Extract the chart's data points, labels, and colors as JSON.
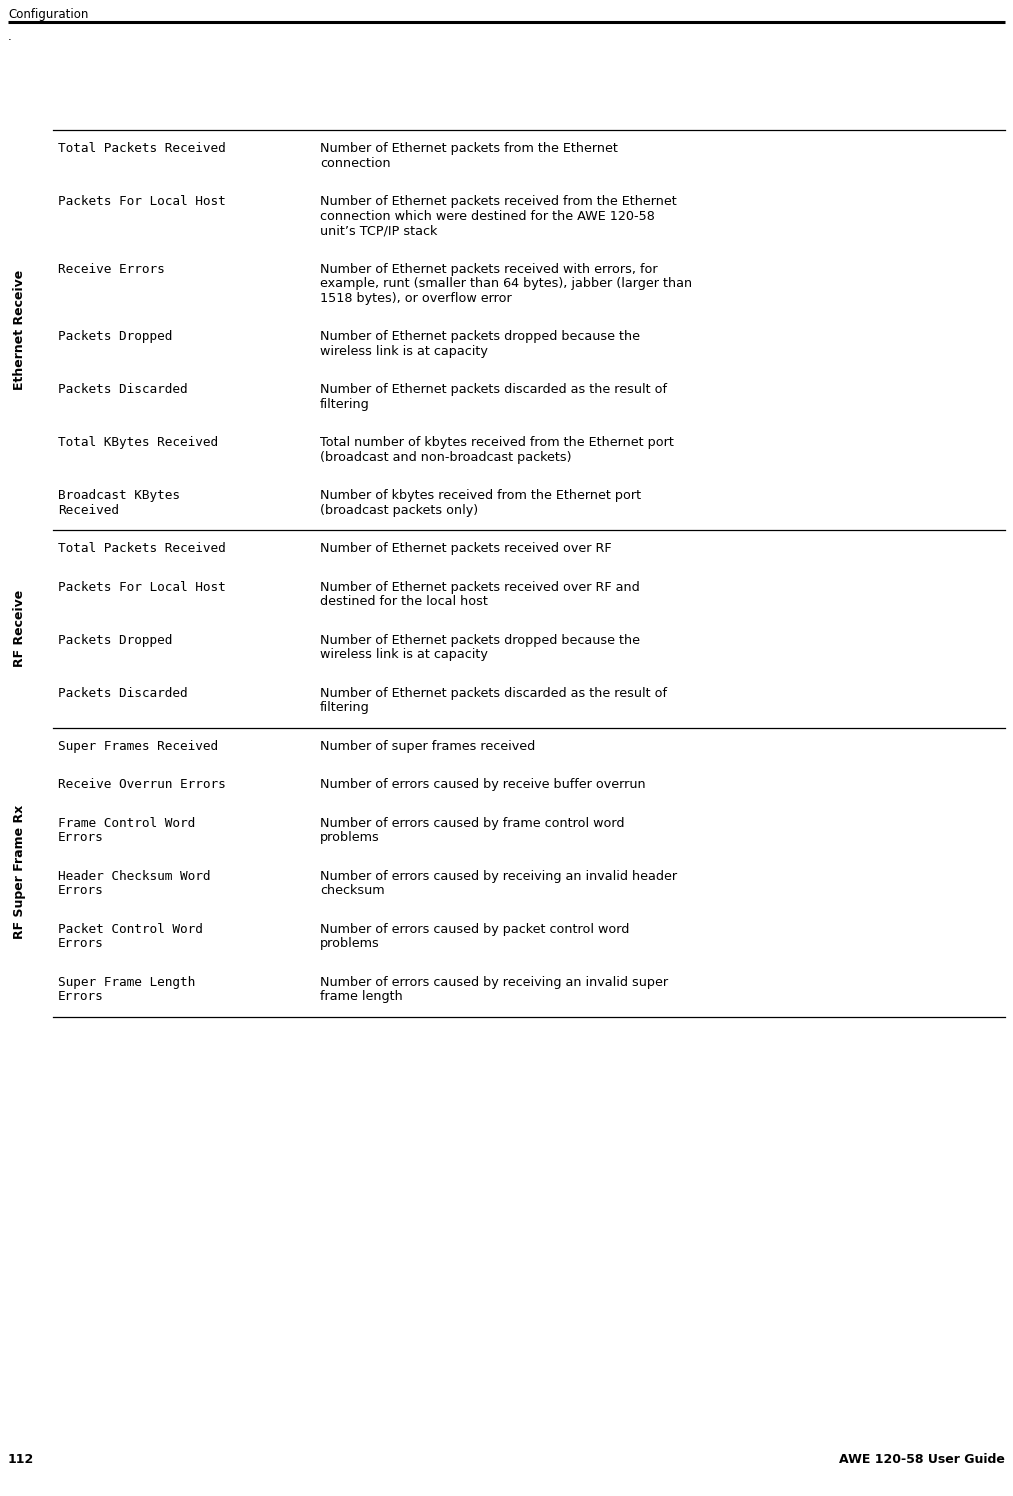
{
  "page_title": "Configuration",
  "page_number": "112",
  "page_footer_right": "AWE 120-58 User Guide",
  "dot_text": ".",
  "background_color": "#ffffff",
  "text_color": "#000000",
  "sections": [
    {
      "label": "Ethernet Receive",
      "rows": [
        {
          "term": "Total Packets Received",
          "description": "Number of Ethernet packets from the Ethernet\nconnection",
          "desc_lines": 2,
          "term_lines": 1
        },
        {
          "term": "Packets For Local Host",
          "description": "Number of Ethernet packets received from the Ethernet\nconnection which were destined for the AWE 120-58\nunit’s TCP/IP stack",
          "desc_lines": 3,
          "term_lines": 1
        },
        {
          "term": "Receive Errors",
          "description": "Number of Ethernet packets received with errors, for\nexample, runt (smaller than 64 bytes), jabber (larger than\n1518 bytes), or overflow error",
          "desc_lines": 3,
          "term_lines": 1
        },
        {
          "term": "Packets Dropped",
          "description": "Number of Ethernet packets dropped because the\nwireless link is at capacity",
          "desc_lines": 2,
          "term_lines": 1
        },
        {
          "term": "Packets Discarded",
          "description": "Number of Ethernet packets discarded as the result of\nfiltering",
          "desc_lines": 2,
          "term_lines": 1
        },
        {
          "term": "Total KBytes Received",
          "description": "Total number of kbytes received from the Ethernet port\n(broadcast and non-broadcast packets)",
          "desc_lines": 2,
          "term_lines": 1
        },
        {
          "term": "Broadcast KBytes\nReceived",
          "description": "Number of kbytes received from the Ethernet port\n(broadcast packets only)",
          "desc_lines": 2,
          "term_lines": 2
        }
      ]
    },
    {
      "label": "RF Receive",
      "rows": [
        {
          "term": "Total Packets Received",
          "description": "Number of Ethernet packets received over RF",
          "desc_lines": 1,
          "term_lines": 1
        },
        {
          "term": "Packets For Local Host",
          "description": "Number of Ethernet packets received over RF and\ndestined for the local host",
          "desc_lines": 2,
          "term_lines": 1
        },
        {
          "term": "Packets Dropped",
          "description": "Number of Ethernet packets dropped because the\nwireless link is at capacity",
          "desc_lines": 2,
          "term_lines": 1
        },
        {
          "term": "Packets Discarded",
          "description": "Number of Ethernet packets discarded as the result of\nfiltering",
          "desc_lines": 2,
          "term_lines": 1
        }
      ]
    },
    {
      "label": "RF Super Frame Rx",
      "rows": [
        {
          "term": "Super Frames Received",
          "description": "Number of super frames received",
          "desc_lines": 1,
          "term_lines": 1
        },
        {
          "term": "Receive Overrun Errors",
          "description": "Number of errors caused by receive buffer overrun",
          "desc_lines": 1,
          "term_lines": 1
        },
        {
          "term": "Frame Control Word\nErrors",
          "description": "Number of errors caused by frame control word\nproblems",
          "desc_lines": 2,
          "term_lines": 2
        },
        {
          "term": "Header Checksum Word\nErrors",
          "description": "Number of errors caused by receiving an invalid header\nchecksum",
          "desc_lines": 2,
          "term_lines": 2
        },
        {
          "term": "Packet Control Word\nErrors",
          "description": "Number of errors caused by packet control word\nproblems",
          "desc_lines": 2,
          "term_lines": 2
        },
        {
          "term": "Super Frame Length\nErrors",
          "description": "Number of errors caused by receiving an invalid super\nframe length",
          "desc_lines": 2,
          "term_lines": 2
        }
      ]
    }
  ]
}
